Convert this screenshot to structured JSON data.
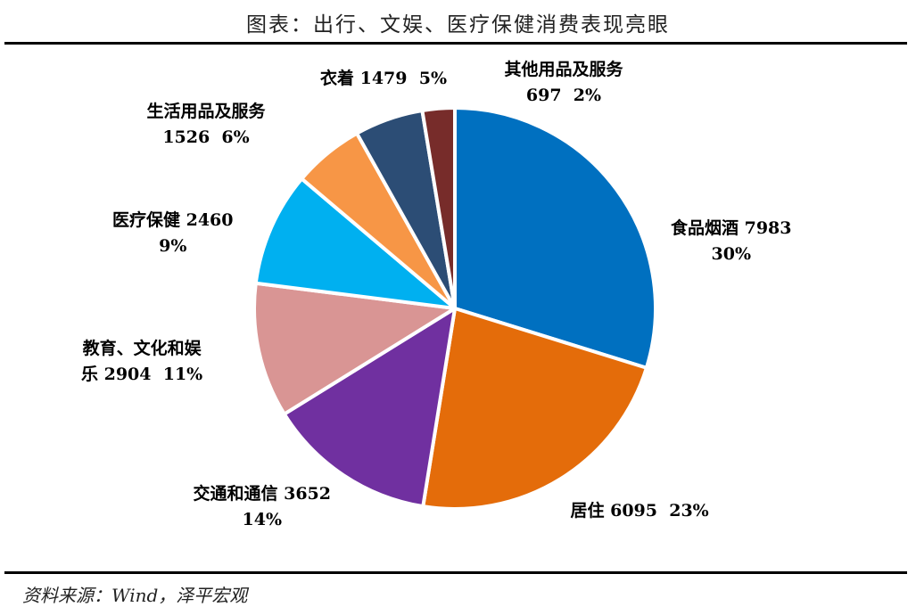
{
  "title": "图表：出行、文娱、医疗保健消费表现亮眼",
  "source": "资料来源：Wind，泽平宏观",
  "chart_data": {
    "type": "pie",
    "start_angle": "12 o'clock",
    "direction": "clockwise",
    "slices": [
      {
        "name": "食品烟酒",
        "value": 7983,
        "pct": "30%",
        "color": "#0070C0",
        "label_lines": [
          "食品烟酒 7983",
          "30%"
        ]
      },
      {
        "name": "居住",
        "value": 6095,
        "pct": "23%",
        "color": "#E46C0A",
        "label_lines": [
          "居住 6095  23%"
        ]
      },
      {
        "name": "交通和通信",
        "value": 3652,
        "pct": "14%",
        "color": "#7030A0",
        "label_lines": [
          "交通和通信 3652",
          "14%"
        ]
      },
      {
        "name": "教育、文化和娱乐",
        "value": 2904,
        "pct": "11%",
        "color": "#D99594",
        "label_lines": [
          "教育、文化和娱",
          "乐 2904  11%"
        ]
      },
      {
        "name": "医疗保健",
        "value": 2460,
        "pct": "9%",
        "color": "#00B0F0",
        "label_lines": [
          "医疗保健 2460",
          "9%"
        ]
      },
      {
        "name": "生活用品及服务",
        "value": 1526,
        "pct": "6%",
        "color": "#F79646",
        "label_lines": [
          "生活用品及服务",
          "1526  6%"
        ]
      },
      {
        "name": "衣着",
        "value": 1479,
        "pct": "5%",
        "color": "#2C4D75",
        "label_lines": [
          "衣着 1479  5%"
        ]
      },
      {
        "name": "其他用品及服务",
        "value": 697,
        "pct": "2%",
        "color": "#772C2A",
        "label_lines": [
          "其他用品及服务",
          "697  2%"
        ]
      }
    ]
  }
}
